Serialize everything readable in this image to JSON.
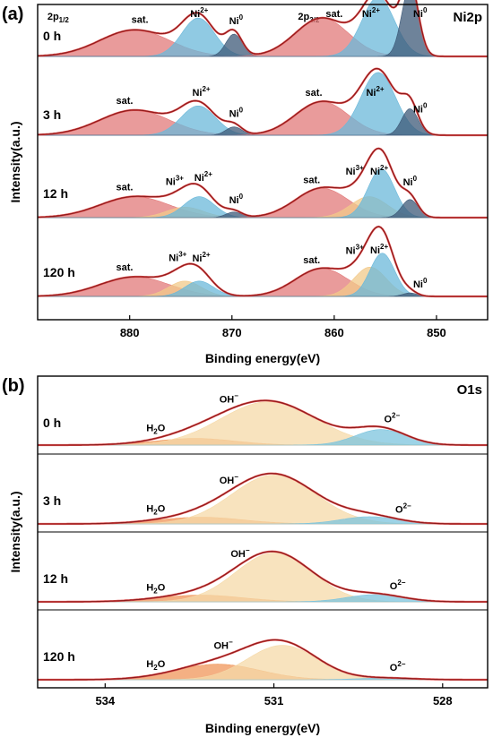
{
  "chart_data": [
    {
      "type": "area",
      "panel_label": "(a)",
      "core_level": "Ni2p",
      "xlabel": "Binding energy(eV)",
      "ylabel": "Intensity(a.u.)",
      "xlim": [
        889,
        845
      ],
      "x_ticks": [
        880,
        870,
        860,
        850
      ],
      "x_tick_labels": [
        "880",
        "870",
        "860",
        "850"
      ],
      "region_labels": [
        {
          "base": "2p",
          "sub": "1/2",
          "x": 887
        },
        {
          "base": "2p",
          "sub": "3/2",
          "x": 862.5
        }
      ],
      "rows": [
        {
          "label": "0 h",
          "envelope_color": "#8B1A1A",
          "peaks": [
            {
              "name": "sat.",
              "center": 879.5,
              "height": 0.38,
              "width": 3.4,
              "color": "#E27A7A"
            },
            {
              "name": "Ni2+",
              "center": 873.3,
              "height": 0.55,
              "width": 1.6,
              "color": "#6BB8DA"
            },
            {
              "name": "Ni0",
              "center": 869.8,
              "height": 0.32,
              "width": 0.8,
              "color": "#3E5A78"
            },
            {
              "name": "sat.",
              "center": 861.2,
              "height": 0.55,
              "width": 2.6,
              "color": "#E27A7A"
            },
            {
              "name": "Ni2+",
              "center": 855.7,
              "height": 0.85,
              "width": 1.6,
              "color": "#6BB8DA"
            },
            {
              "name": "Ni0",
              "center": 852.6,
              "height": 1.0,
              "width": 0.8,
              "color": "#3E5A78"
            }
          ],
          "annotations": [
            {
              "text": "sat.",
              "x": 879
            },
            {
              "text": "Ni",
              "sup": "2+",
              "x": 873.2
            },
            {
              "text": "Ni",
              "sup": "0",
              "x": 869.6
            },
            {
              "text": "sat.",
              "x": 860
            },
            {
              "text": "Ni",
              "sup": "2+",
              "x": 856.4
            },
            {
              "text": "Ni",
              "sup": "0",
              "x": 851.6
            }
          ]
        },
        {
          "label": "3 h",
          "envelope_color": "#8B1A1A",
          "peaks": [
            {
              "name": "sat.",
              "center": 879.5,
              "height": 0.36,
              "width": 3.4,
              "color": "#E27A7A"
            },
            {
              "name": "Ni2+",
              "center": 873.3,
              "height": 0.42,
              "width": 1.7,
              "color": "#6BB8DA"
            },
            {
              "name": "Ni0",
              "center": 869.8,
              "height": 0.12,
              "width": 0.8,
              "color": "#3E5A78"
            },
            {
              "name": "sat.",
              "center": 861.2,
              "height": 0.48,
              "width": 2.6,
              "color": "#E27A7A"
            },
            {
              "name": "Ni2+",
              "center": 855.7,
              "height": 0.9,
              "width": 1.7,
              "color": "#6BB8DA"
            },
            {
              "name": "Ni0",
              "center": 852.6,
              "height": 0.38,
              "width": 0.8,
              "color": "#3E5A78"
            }
          ],
          "annotations": [
            {
              "text": "sat.",
              "x": 880.5
            },
            {
              "text": "Ni",
              "sup": "2+",
              "x": 873
            },
            {
              "text": "Ni",
              "sup": "0",
              "x": 869.6
            },
            {
              "text": "sat.",
              "x": 862
            },
            {
              "text": "Ni",
              "sup": "2+",
              "x": 856
            },
            {
              "text": "Ni",
              "sup": "0",
              "x": 851.6
            }
          ]
        },
        {
          "label": "12 h",
          "envelope_color": "#8B1A1A",
          "peaks": [
            {
              "name": "sat.",
              "center": 879.5,
              "height": 0.3,
              "width": 3.4,
              "color": "#E27A7A"
            },
            {
              "name": "Ni3+",
              "center": 874.6,
              "height": 0.15,
              "width": 1.8,
              "color": "#F2C98A"
            },
            {
              "name": "Ni2+",
              "center": 873.2,
              "height": 0.3,
              "width": 1.5,
              "color": "#6BB8DA"
            },
            {
              "name": "Ni0",
              "center": 869.8,
              "height": 0.08,
              "width": 0.8,
              "color": "#3E5A78"
            },
            {
              "name": "sat.",
              "center": 861.2,
              "height": 0.42,
              "width": 2.6,
              "color": "#E27A7A"
            },
            {
              "name": "Ni3+",
              "center": 856.6,
              "height": 0.3,
              "width": 1.8,
              "color": "#F2C98A"
            },
            {
              "name": "Ni2+",
              "center": 855.4,
              "height": 0.7,
              "width": 1.3,
              "color": "#6BB8DA"
            },
            {
              "name": "Ni0",
              "center": 852.6,
              "height": 0.26,
              "width": 0.8,
              "color": "#3E5A78"
            }
          ],
          "annotations": [
            {
              "text": "sat.",
              "x": 880.5
            },
            {
              "text": "Ni",
              "sup": "3+",
              "x": 875.6
            },
            {
              "text": "Ni",
              "sup": "2+",
              "x": 872.8
            },
            {
              "text": "Ni",
              "sup": "0",
              "x": 869.6
            },
            {
              "text": "sat.",
              "x": 862.2
            },
            {
              "text": "Ni",
              "sup": "3+",
              "x": 858
            },
            {
              "text": "Ni",
              "sup": "2+",
              "x": 855.6
            },
            {
              "text": "Ni",
              "sup": "0",
              "x": 852.6
            }
          ]
        },
        {
          "label": "120 h",
          "envelope_color": "#8B1A1A",
          "peaks": [
            {
              "name": "sat.",
              "center": 879.5,
              "height": 0.28,
              "width": 3.4,
              "color": "#E27A7A"
            },
            {
              "name": "Ni3+",
              "center": 874.6,
              "height": 0.22,
              "width": 1.6,
              "color": "#F2C98A"
            },
            {
              "name": "Ni2+",
              "center": 873.2,
              "height": 0.22,
              "width": 1.4,
              "color": "#6BB8DA"
            },
            {
              "name": "sat.",
              "center": 861.2,
              "height": 0.4,
              "width": 2.6,
              "color": "#E27A7A"
            },
            {
              "name": "Ni3+",
              "center": 856.5,
              "height": 0.42,
              "width": 1.6,
              "color": "#F2C98A"
            },
            {
              "name": "Ni2+",
              "center": 855.3,
              "height": 0.62,
              "width": 1.2,
              "color": "#6BB8DA"
            },
            {
              "name": "Ni0",
              "center": 852.6,
              "height": 0.05,
              "width": 0.7,
              "color": "#3E5A78"
            }
          ],
          "annotations": [
            {
              "text": "sat.",
              "x": 880.5
            },
            {
              "text": "Ni",
              "sup": "3+",
              "x": 875.3
            },
            {
              "text": "Ni",
              "sup": "2+",
              "x": 873
            },
            {
              "text": "sat.",
              "x": 862.2
            },
            {
              "text": "Ni",
              "sup": "3+",
              "x": 858
            },
            {
              "text": "Ni",
              "sup": "2+",
              "x": 855.6
            },
            {
              "text": "Ni",
              "sup": "0",
              "x": 851.6
            }
          ]
        }
      ]
    },
    {
      "type": "area",
      "panel_label": "(b)",
      "core_level": "O1s",
      "xlabel": "Binding energy(eV)",
      "ylabel": "Intensity(a.u.)",
      "xlim": [
        535.2,
        527.2
      ],
      "x_ticks": [
        534,
        531,
        528
      ],
      "x_tick_labels": [
        "534",
        "531",
        "528"
      ],
      "rows": [
        {
          "label": "0 h",
          "envelope_color": "#8B1A1A",
          "peaks": [
            {
              "name": "H2O",
              "center": 532.4,
              "height": 0.12,
              "width": 0.7,
              "color": "#F0965A"
            },
            {
              "name": "OH-",
              "center": 531.1,
              "height": 0.78,
              "width": 0.85,
              "color": "#F5D9A8"
            },
            {
              "name": "O2-",
              "center": 529.1,
              "height": 0.28,
              "width": 0.45,
              "color": "#7CC4DE"
            }
          ],
          "annotations": [
            {
              "text": "H",
              "sub": "2",
              "tail": "O",
              "x": 533.1
            },
            {
              "text": "OH",
              "sup": "−",
              "x": 531.8
            },
            {
              "text": "O",
              "sup": "2−",
              "x": 528.9
            }
          ]
        },
        {
          "label": "3 h",
          "envelope_color": "#8B1A1A",
          "peaks": [
            {
              "name": "H2O",
              "center": 532.3,
              "height": 0.12,
              "width": 0.75,
              "color": "#F0965A"
            },
            {
              "name": "OH-",
              "center": 531.0,
              "height": 0.88,
              "width": 0.75,
              "color": "#F5D9A8"
            },
            {
              "name": "O2-",
              "center": 529.3,
              "height": 0.13,
              "width": 0.5,
              "color": "#7CC4DE"
            }
          ],
          "annotations": [
            {
              "text": "H",
              "sub": "2",
              "tail": "O",
              "x": 533.1
            },
            {
              "text": "OH",
              "sup": "−",
              "x": 531.8
            },
            {
              "text": "O",
              "sup": "2−",
              "x": 528.7
            }
          ]
        },
        {
          "label": "12 h",
          "envelope_color": "#8B1A1A",
          "peaks": [
            {
              "name": "H2O",
              "center": 532.3,
              "height": 0.12,
              "width": 0.75,
              "color": "#F0965A"
            },
            {
              "name": "OH-",
              "center": 531.0,
              "height": 0.88,
              "width": 0.68,
              "color": "#F5D9A8"
            },
            {
              "name": "O2-",
              "center": 529.2,
              "height": 0.13,
              "width": 0.5,
              "color": "#7CC4DE"
            }
          ],
          "annotations": [
            {
              "text": "H",
              "sub": "2",
              "tail": "O",
              "x": 533.1
            },
            {
              "text": "OH",
              "sup": "−",
              "x": 531.6
            },
            {
              "text": "O",
              "sup": "2−",
              "x": 528.8
            }
          ]
        },
        {
          "label": "120 h",
          "envelope_color": "#8B1A1A",
          "peaks": [
            {
              "name": "H2O",
              "center": 532.0,
              "height": 0.28,
              "width": 0.75,
              "color": "#F0965A"
            },
            {
              "name": "OH-",
              "center": 530.85,
              "height": 0.62,
              "width": 0.62,
              "color": "#F5D9A8"
            },
            {
              "name": "O2-",
              "center": 529.0,
              "height": 0.03,
              "width": 0.5,
              "color": "#7CC4DE"
            }
          ],
          "annotations": [
            {
              "text": "H",
              "sub": "2",
              "tail": "O",
              "x": 533.1
            },
            {
              "text": "OH",
              "sup": "−",
              "x": 531.9
            },
            {
              "text": "O",
              "sup": "2−",
              "x": 528.8
            }
          ]
        }
      ]
    }
  ]
}
